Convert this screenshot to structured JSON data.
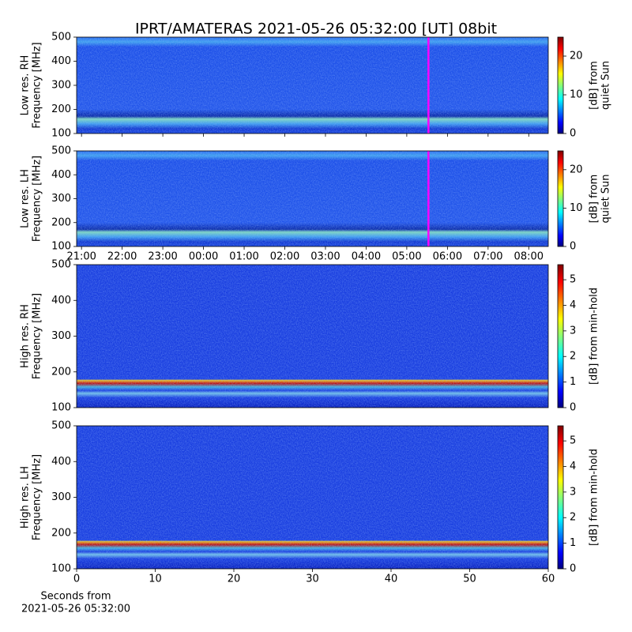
{
  "chart_data": [
    {
      "type": "heatmap",
      "title": "IPRT/AMATERAS 2021-05-26 05:32:00 [UT]   08bit",
      "ylabel": [
        "Low res. RH",
        "Frequency [MHz]"
      ],
      "ylim": [
        100,
        500
      ],
      "yticks": [
        100,
        200,
        300,
        400,
        500
      ],
      "xlim": [
        20.88,
        32.48
      ],
      "xticks": [
        21,
        22,
        23,
        24,
        25,
        26,
        27,
        28,
        29,
        30,
        31,
        32
      ],
      "tick_labels": false,
      "marker_x": 29.533,
      "marker_color": "#ff00ff",
      "colorbar_label": [
        "[dB] from",
        "quiet Sun"
      ],
      "clim": [
        0,
        24.9
      ],
      "cticks": [
        0,
        10,
        20
      ]
    },
    {
      "type": "heatmap",
      "ylabel": [
        "Low res. LH",
        "Frequency [MHz]"
      ],
      "ylim": [
        100,
        500
      ],
      "yticks": [
        100,
        200,
        300,
        400,
        500
      ],
      "xlim": [
        20.88,
        32.48
      ],
      "xticks": [
        {
          "value": 21,
          "label": "21:00"
        },
        {
          "value": 22,
          "label": "22:00"
        },
        {
          "value": 23,
          "label": "23:00"
        },
        {
          "value": 24,
          "label": "00:00"
        },
        {
          "value": 25,
          "label": "01:00"
        },
        {
          "value": 26,
          "label": "02:00"
        },
        {
          "value": 27,
          "label": "03:00"
        },
        {
          "value": 28,
          "label": "04:00"
        },
        {
          "value": 29,
          "label": "05:00"
        },
        {
          "value": 30,
          "label": "06:00"
        },
        {
          "value": 31,
          "label": "07:00"
        },
        {
          "value": 32,
          "label": "08:00"
        }
      ],
      "marker_x": 29.533,
      "marker_color": "#ff00ff",
      "colorbar_label": [
        "[dB] from",
        "quiet Sun"
      ],
      "clim": [
        0,
        24.9
      ],
      "cticks": [
        0,
        10,
        20
      ]
    },
    {
      "type": "heatmap",
      "ylabel": [
        "High res. RH",
        "Frequency [MHz]"
      ],
      "ylim": [
        100,
        500
      ],
      "yticks": [
        100,
        200,
        300,
        400,
        500
      ],
      "xlim": [
        0,
        60
      ],
      "colorbar_label": [
        "[dB] from min-hold"
      ],
      "clim": [
        0,
        5.59
      ],
      "cticks": [
        0,
        1,
        2,
        3,
        4,
        5
      ]
    },
    {
      "type": "heatmap",
      "ylabel": [
        "High res. LH",
        "Frequency [MHz]"
      ],
      "ylim": [
        100,
        500
      ],
      "yticks": [
        100,
        200,
        300,
        400,
        500
      ],
      "xlim": [
        0,
        60
      ],
      "xticks": [
        0,
        10,
        20,
        30,
        40,
        50,
        60
      ],
      "xlabel": [
        "Seconds from",
        "2021-05-26 05:32:00"
      ],
      "colorbar_label": [
        "[dB] from min-hold"
      ],
      "clim": [
        0,
        5.59
      ],
      "cticks": [
        0,
        1,
        2,
        3,
        4,
        5
      ]
    }
  ]
}
